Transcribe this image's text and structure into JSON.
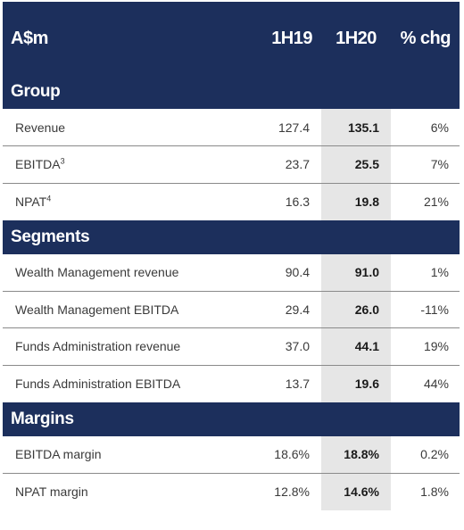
{
  "header": {
    "label": "A$m",
    "col_1h19": "1H19",
    "col_1h20": "1H20",
    "col_chg": "% chg"
  },
  "sections": {
    "group": {
      "title": "Group",
      "rows": [
        {
          "label": "Revenue",
          "sup": "",
          "v1h19": "127.4",
          "v1h20": "135.1",
          "chg": "6%"
        },
        {
          "label": "EBITDA",
          "sup": "3",
          "v1h19": "23.7",
          "v1h20": "25.5",
          "chg": "7%"
        },
        {
          "label": "NPAT",
          "sup": "4",
          "v1h19": "16.3",
          "v1h20": "19.8",
          "chg": "21%"
        }
      ]
    },
    "segments": {
      "title": "Segments",
      "rows": [
        {
          "label": "Wealth Management revenue",
          "v1h19": "90.4",
          "v1h20": "91.0",
          "chg": "1%"
        },
        {
          "label": "Wealth Management EBITDA",
          "v1h19": "29.4",
          "v1h20": "26.0",
          "chg": "-11%"
        },
        {
          "label": "Funds Administration revenue",
          "v1h19": "37.0",
          "v1h20": "44.1",
          "chg": "19%"
        },
        {
          "label": "Funds Administration EBITDA",
          "v1h19": "13.7",
          "v1h20": "19.6",
          "chg": "44%"
        }
      ]
    },
    "margins": {
      "title": "Margins",
      "rows": [
        {
          "label": "EBITDA margin",
          "v1h19": "18.6%",
          "v1h20": "18.8%",
          "chg": "0.2%"
        },
        {
          "label": "NPAT margin",
          "v1h19": "12.8%",
          "v1h20": "14.6%",
          "chg": "1.8%"
        }
      ]
    }
  },
  "colors": {
    "header_bg": "#1c2f5c",
    "highlight_bg": "#e6e6e6",
    "divider": "#8a8a8a"
  }
}
